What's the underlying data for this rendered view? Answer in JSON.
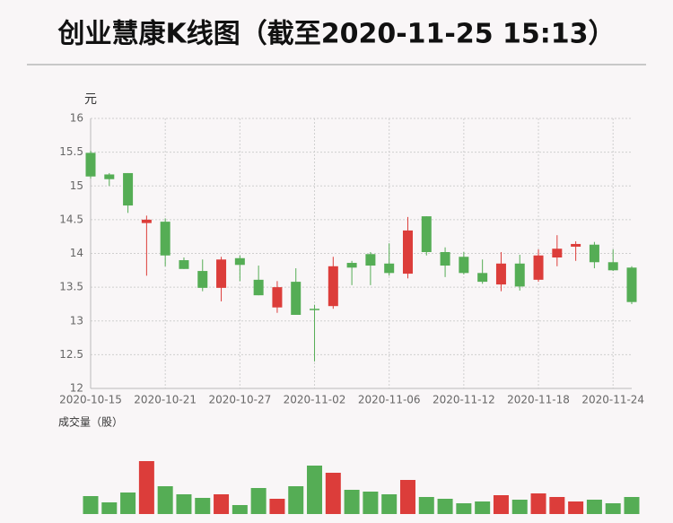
{
  "chart_data": {
    "type": "candlestick",
    "title": "创业慧康K线图（截至2020-11-25 15:13）",
    "y_label": "元",
    "volume_label": "成交量（股）",
    "categories": [
      "2020-10-15",
      null,
      null,
      null,
      "2020-10-21",
      null,
      null,
      null,
      "2020-10-27",
      null,
      null,
      null,
      "2020-11-02",
      null,
      null,
      null,
      "2020-11-06",
      null,
      null,
      null,
      "2020-11-12",
      null,
      null,
      null,
      "2020-11-18",
      null,
      null,
      null,
      "2020-11-24",
      null
    ],
    "open": [
      15.49,
      15.17,
      15.19,
      14.45,
      14.47,
      13.9,
      13.74,
      13.49,
      13.93,
      13.61,
      13.2,
      13.58,
      13.18,
      13.22,
      13.86,
      13.99,
      13.85,
      13.7,
      14.55,
      14.02,
      13.95,
      13.71,
      13.54,
      13.85,
      13.61,
      13.94,
      14.1,
      14.13,
      13.87,
      13.79
    ],
    "close": [
      15.14,
      15.1,
      14.71,
      14.5,
      13.97,
      13.77,
      13.49,
      13.91,
      13.83,
      13.38,
      13.5,
      13.09,
      13.16,
      13.81,
      13.79,
      13.82,
      13.71,
      14.34,
      14.02,
      13.82,
      13.71,
      13.58,
      13.85,
      13.51,
      13.97,
      14.07,
      14.14,
      13.87,
      13.75,
      13.28
    ],
    "high": [
      15.52,
      15.19,
      15.19,
      14.56,
      14.52,
      13.94,
      13.91,
      13.95,
      13.97,
      13.82,
      13.59,
      13.78,
      13.24,
      13.95,
      13.89,
      14.02,
      14.15,
      14.54,
      14.55,
      14.09,
      14.02,
      13.91,
      14.02,
      13.98,
      14.06,
      14.27,
      14.18,
      14.17,
      14.06,
      13.81
    ],
    "low": [
      15.11,
      15.0,
      14.6,
      13.67,
      13.81,
      13.77,
      13.44,
      13.29,
      13.59,
      13.38,
      13.12,
      13.09,
      12.4,
      13.18,
      13.53,
      13.53,
      13.67,
      13.63,
      13.97,
      13.65,
      13.69,
      13.55,
      13.44,
      13.45,
      13.58,
      13.81,
      13.89,
      13.78,
      13.74,
      13.25
    ],
    "up_color": "#dc3d3a",
    "down_color": "#55ad55",
    "ylim": [
      12,
      16
    ],
    "yticks": [
      12,
      12.5,
      13,
      13.5,
      14,
      14.5,
      15,
      15.5,
      16
    ],
    "grid": true,
    "volume": {
      "values": [
        20,
        13,
        24,
        59,
        31,
        22,
        18,
        22,
        10,
        29,
        17,
        31,
        54,
        46,
        27,
        25,
        22,
        38,
        19,
        17,
        12,
        14,
        21,
        16,
        23,
        19,
        14,
        16,
        12,
        19
      ],
      "ylim": [
        0,
        60
      ]
    }
  }
}
